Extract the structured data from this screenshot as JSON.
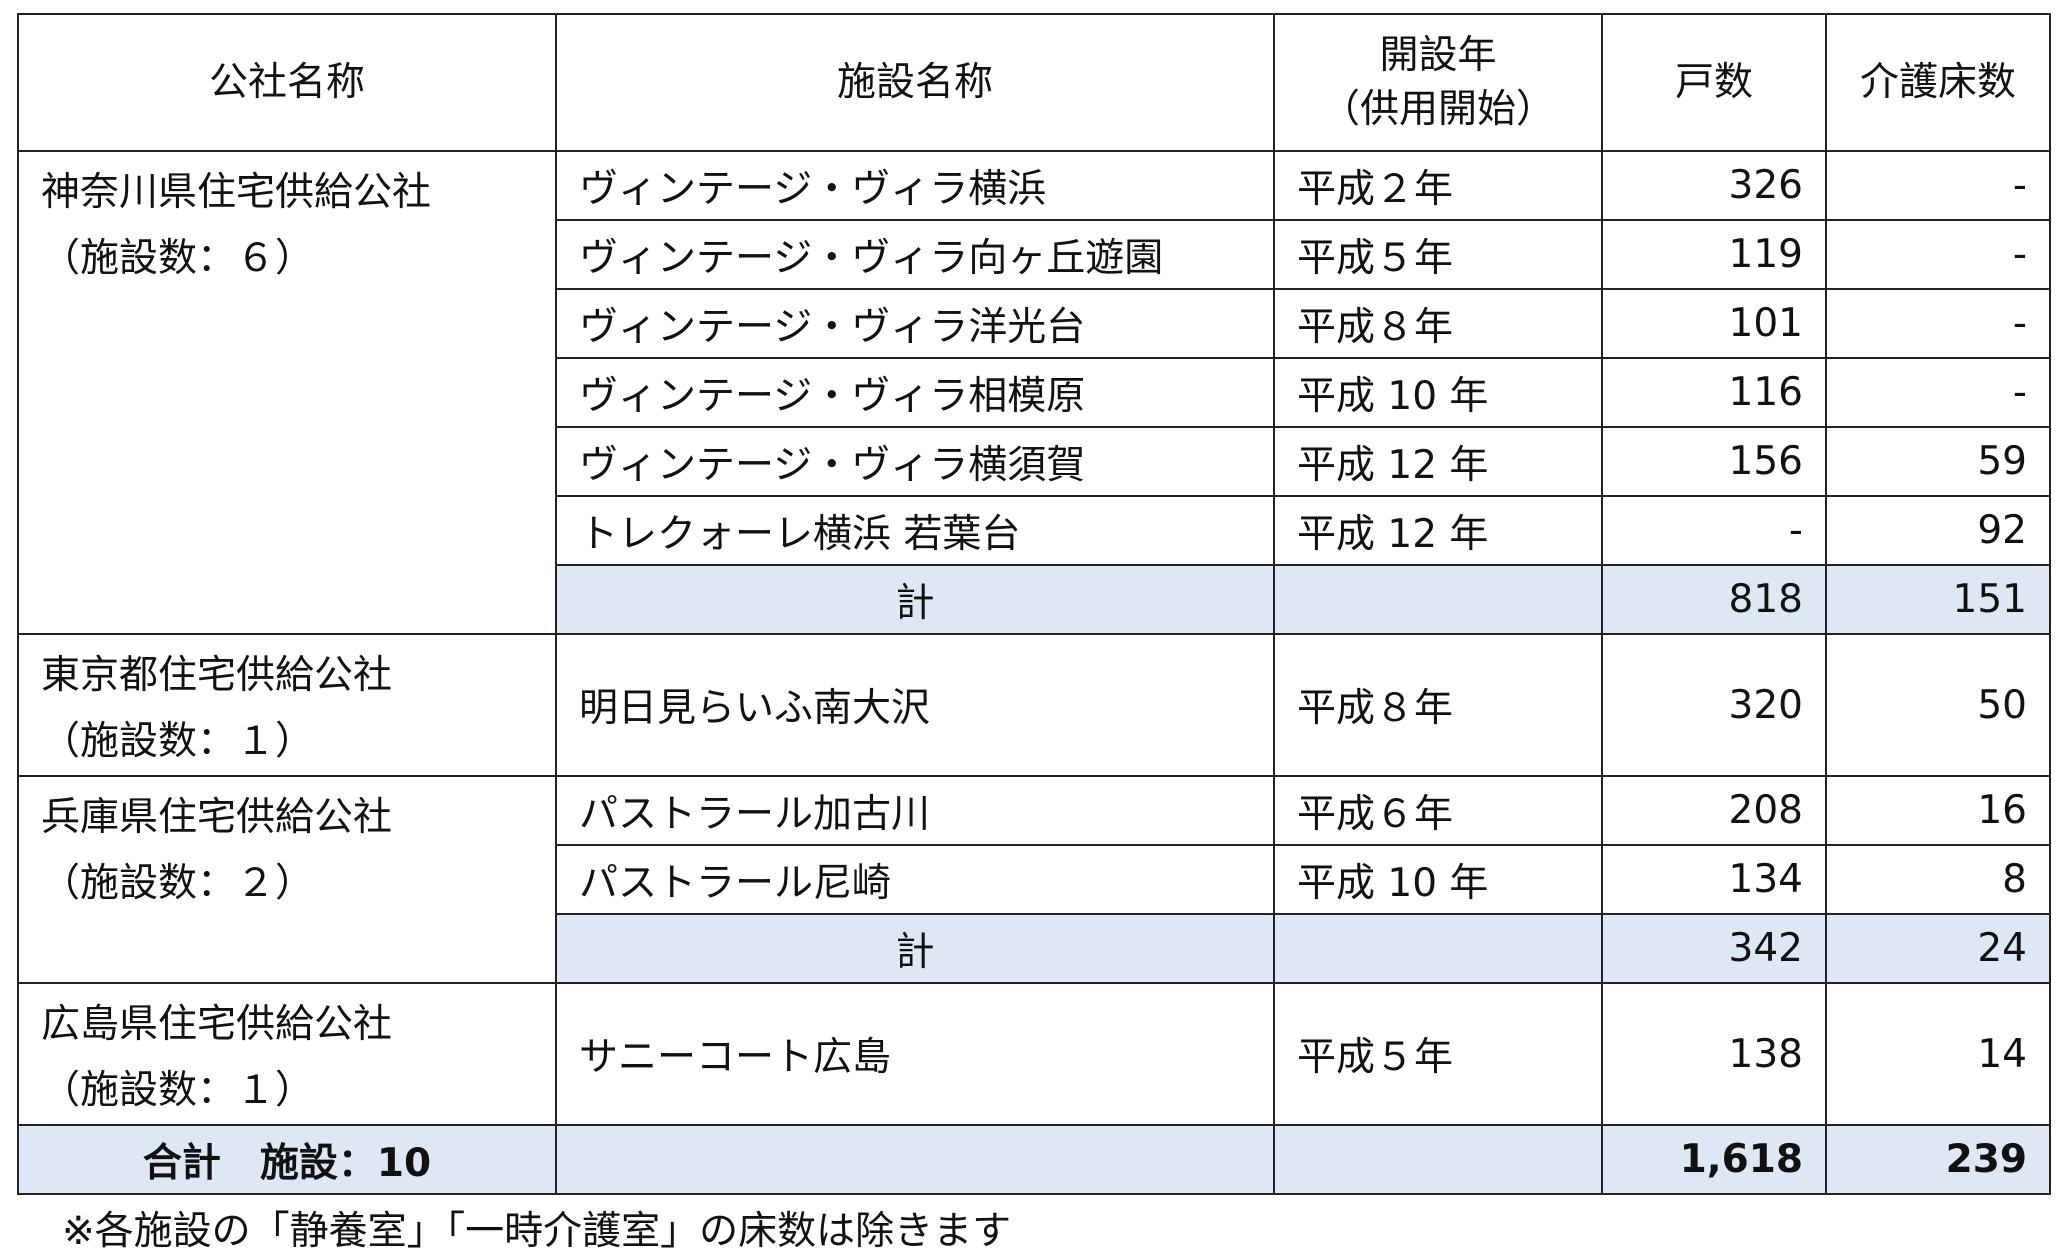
{
  "headers": [
    "公社名称",
    "施設名称",
    "開設年",
    "（供用開始）",
    "戸数",
    "介護床数"
  ],
  "groups": [
    {
      "name": "神奈川県住宅供給公社",
      "count": "（施設数：６）",
      "rows": [
        [
          "ヴィンテージ・ヴィラ横浜",
          "平成２年",
          "326",
          "-"
        ],
        [
          "ヴィンテージ・ヴィラ向ヶ丘遊園",
          "平成５年",
          "119",
          "-"
        ],
        [
          "ヴィンテージ・ヴィラ洋光台",
          "平成８年",
          "101",
          "-"
        ],
        [
          "ヴィンテージ・ヴィラ相模原",
          "平成 10 年",
          "116",
          "-"
        ],
        [
          "ヴィンテージ・ヴィラ横須賀",
          "平成 12 年",
          "156",
          "59"
        ],
        [
          "トレクォーレ横浜 若葉台",
          "平成 12 年",
          "-",
          "92"
        ]
      ],
      "subtotal": {
        "label": "計",
        "units": "818",
        "beds": "151"
      }
    },
    {
      "name": "東京都住宅供給公社",
      "count": "（施設数：１）",
      "rows": [
        [
          "明日見らいふ南大沢",
          "平成８年",
          "320",
          "50"
        ]
      ]
    },
    {
      "name": "兵庫県住宅供給公社",
      "count": "（施設数：２）",
      "rows": [
        [
          "パストラール加古川",
          "平成６年",
          "208",
          "16"
        ],
        [
          "パストラール尼崎",
          "平成 10 年",
          "134",
          "8"
        ]
      ],
      "subtotal": {
        "label": "計",
        "units": "342",
        "beds": "24"
      }
    },
    {
      "name": "広島県住宅供給公社",
      "count": "（施設数：１）",
      "rows": [
        [
          "サニーコート広島",
          "平成５年",
          "138",
          "14"
        ]
      ]
    }
  ],
  "total": {
    "label": "合計　施設：10",
    "units": "1,618",
    "beds": "239"
  },
  "footnote": "※各施設の「静養室」「一時介護室」の床数は除きます",
  "colors": {
    "subtotal_bg": "#dde8f4",
    "border": "#222222"
  }
}
